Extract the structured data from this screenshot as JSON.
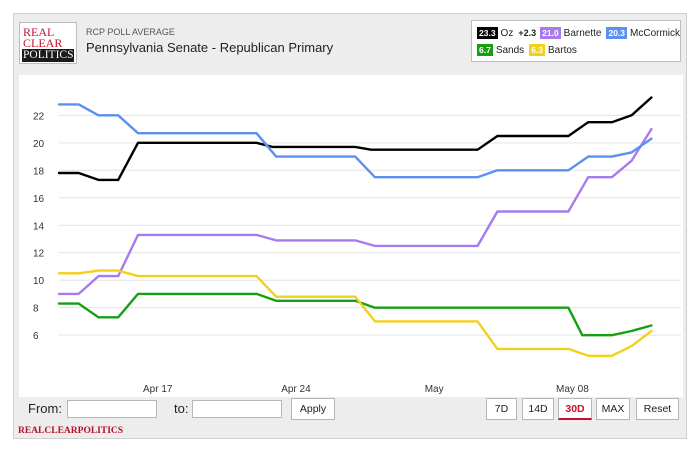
{
  "header": {
    "logo_line1": "REAL",
    "logo_line2": "CLEAR",
    "logo_line3": "POLITICS",
    "kicker": "RCP POLL AVERAGE",
    "title": "Pennsylvania Senate - Republican Primary"
  },
  "legend": {
    "items": [
      {
        "value": "23.3",
        "name": "Oz",
        "spread": "+2.3",
        "color": "#000000",
        "text_color": "#ffffff"
      },
      {
        "value": "21.0",
        "name": "Barnette",
        "color": "#a77bee",
        "text_color": "#ffffff"
      },
      {
        "value": "20.3",
        "name": "McCormick",
        "color": "#5b8ff2",
        "text_color": "#ffffff"
      },
      {
        "value": "6.7",
        "name": "Sands",
        "color": "#15a012",
        "text_color": "#ffffff"
      },
      {
        "value": "6.3",
        "name": "Bartos",
        "color": "#f2d11b",
        "text_color": "#ffffff"
      }
    ]
  },
  "controls": {
    "from_label": "From:",
    "to_label": "to:",
    "from_value": "",
    "to_value": "",
    "apply_label": "Apply",
    "range_buttons": [
      "7D",
      "14D",
      "30D",
      "MAX",
      "Reset"
    ],
    "active_range": "30D"
  },
  "footer_brand": "REALCLEARPOLITICS",
  "chart_data": {
    "type": "line",
    "title": "Pennsylvania Senate - Republican Primary",
    "x_start": "Apr 12",
    "x_range": [
      0,
      31.5
    ],
    "x_ticks": [
      {
        "label": "Apr 17",
        "x": 5
      },
      {
        "label": "Apr 24",
        "x": 12
      },
      {
        "label": "May",
        "x": 19
      },
      {
        "label": "May 08",
        "x": 26
      }
    ],
    "ylim": [
      3.1,
      24.5
    ],
    "y_ticks": [
      6,
      8,
      10,
      12,
      14,
      16,
      18,
      20,
      22
    ],
    "grid": true,
    "series": [
      {
        "name": "Oz",
        "color": "#000000",
        "points": [
          [
            0,
            17.8
          ],
          [
            1,
            17.8
          ],
          [
            2,
            17.3
          ],
          [
            3,
            17.3
          ],
          [
            4,
            20.0
          ],
          [
            10,
            20.0
          ],
          [
            10.8,
            19.7
          ],
          [
            15,
            19.7
          ],
          [
            15.8,
            19.5
          ],
          [
            21.2,
            19.5
          ],
          [
            22.2,
            20.5
          ],
          [
            25.8,
            20.5
          ],
          [
            26.8,
            21.5
          ],
          [
            28,
            21.5
          ],
          [
            29,
            22.0
          ],
          [
            30,
            23.3
          ]
        ]
      },
      {
        "name": "Barnette",
        "color": "#a77bee",
        "points": [
          [
            0,
            9.0
          ],
          [
            1,
            9.0
          ],
          [
            2,
            10.3
          ],
          [
            3,
            10.3
          ],
          [
            4,
            13.3
          ],
          [
            10,
            13.3
          ],
          [
            11,
            12.9
          ],
          [
            15,
            12.9
          ],
          [
            16,
            12.5
          ],
          [
            21.2,
            12.5
          ],
          [
            22.2,
            15.0
          ],
          [
            25.8,
            15.0
          ],
          [
            26.8,
            17.5
          ],
          [
            28,
            17.5
          ],
          [
            29,
            18.7
          ],
          [
            30,
            21.0
          ]
        ]
      },
      {
        "name": "McCormick",
        "color": "#5b8ff2",
        "points": [
          [
            0,
            22.8
          ],
          [
            1,
            22.8
          ],
          [
            2,
            22.0
          ],
          [
            3,
            22.0
          ],
          [
            4,
            20.7
          ],
          [
            10,
            20.7
          ],
          [
            11,
            19.0
          ],
          [
            15,
            19.0
          ],
          [
            16,
            17.5
          ],
          [
            21.2,
            17.5
          ],
          [
            22.2,
            18.0
          ],
          [
            25.8,
            18.0
          ],
          [
            26.8,
            19.0
          ],
          [
            28,
            19.0
          ],
          [
            29,
            19.3
          ],
          [
            30,
            20.3
          ]
        ]
      },
      {
        "name": "Sands",
        "color": "#15a012",
        "points": [
          [
            0,
            8.3
          ],
          [
            1,
            8.3
          ],
          [
            2,
            7.3
          ],
          [
            3,
            7.3
          ],
          [
            4,
            9.0
          ],
          [
            10,
            9.0
          ],
          [
            11,
            8.5
          ],
          [
            15,
            8.5
          ],
          [
            16,
            8.0
          ],
          [
            21.2,
            8.0
          ],
          [
            22.2,
            8.0
          ],
          [
            25.8,
            8.0
          ],
          [
            26.5,
            6.0
          ],
          [
            28,
            6.0
          ],
          [
            29,
            6.3
          ],
          [
            30,
            6.7
          ]
        ]
      },
      {
        "name": "Bartos",
        "color": "#f2d11b",
        "points": [
          [
            0,
            10.5
          ],
          [
            1,
            10.5
          ],
          [
            2,
            10.7
          ],
          [
            3,
            10.7
          ],
          [
            4,
            10.3
          ],
          [
            10,
            10.3
          ],
          [
            11,
            8.8
          ],
          [
            15,
            8.8
          ],
          [
            16,
            7.0
          ],
          [
            21.2,
            7.0
          ],
          [
            22.2,
            5.0
          ],
          [
            25.8,
            5.0
          ],
          [
            26.8,
            4.5
          ],
          [
            28,
            4.5
          ],
          [
            29,
            5.2
          ],
          [
            30,
            6.3
          ]
        ]
      }
    ]
  }
}
